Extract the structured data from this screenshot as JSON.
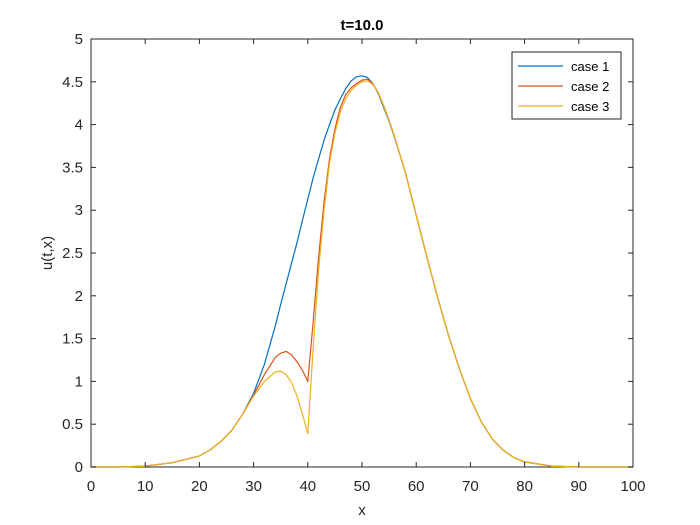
{
  "chart_data": {
    "type": "line",
    "title": "t=10.0",
    "xlabel": "x",
    "ylabel": "u(t,x)",
    "xlim": [
      0,
      100
    ],
    "ylim": [
      0,
      5
    ],
    "xticks": [
      0,
      10,
      20,
      30,
      40,
      50,
      60,
      70,
      80,
      90,
      100
    ],
    "yticks": [
      0,
      0.5,
      1,
      1.5,
      2,
      2.5,
      3,
      3.5,
      4,
      4.5,
      5
    ],
    "grid": false,
    "legend_position": "top-right",
    "x": [
      0,
      5,
      10,
      15,
      20,
      22,
      24,
      26,
      28,
      30,
      32,
      34,
      35,
      36,
      37,
      38,
      39,
      40,
      41,
      42,
      43,
      44,
      45,
      46,
      47,
      48,
      49,
      50,
      51,
      52,
      53,
      54,
      55,
      56,
      58,
      60,
      62,
      64,
      66,
      68,
      70,
      72,
      74,
      76,
      78,
      80,
      85,
      90,
      95,
      100
    ],
    "series": [
      {
        "name": "case 1",
        "color": "#0072BD",
        "values": [
          0,
          0,
          0.01,
          0.05,
          0.13,
          0.2,
          0.3,
          0.43,
          0.62,
          0.86,
          1.2,
          1.65,
          1.9,
          2.14,
          2.38,
          2.62,
          2.88,
          3.13,
          3.38,
          3.6,
          3.82,
          4.0,
          4.17,
          4.3,
          4.42,
          4.51,
          4.56,
          4.57,
          4.55,
          4.48,
          4.36,
          4.2,
          4.04,
          3.85,
          3.44,
          2.94,
          2.45,
          1.97,
          1.53,
          1.14,
          0.8,
          0.53,
          0.33,
          0.2,
          0.11,
          0.06,
          0.01,
          0,
          0,
          0
        ]
      },
      {
        "name": "case 2",
        "color": "#D95319",
        "values": [
          0,
          0,
          0.01,
          0.05,
          0.13,
          0.2,
          0.3,
          0.43,
          0.62,
          0.84,
          1.08,
          1.28,
          1.33,
          1.35,
          1.31,
          1.23,
          1.13,
          1.0,
          1.7,
          2.45,
          3.1,
          3.6,
          3.95,
          4.2,
          4.35,
          4.43,
          4.48,
          4.52,
          4.53,
          4.48,
          4.37,
          4.22,
          4.05,
          3.86,
          3.44,
          2.94,
          2.45,
          1.97,
          1.53,
          1.14,
          0.8,
          0.53,
          0.33,
          0.2,
          0.11,
          0.06,
          0.01,
          0,
          0,
          0
        ]
      },
      {
        "name": "case 3",
        "color": "#EDB120",
        "values": [
          0,
          0,
          0.01,
          0.05,
          0.13,
          0.2,
          0.3,
          0.43,
          0.62,
          0.83,
          1.0,
          1.11,
          1.12,
          1.08,
          0.99,
          0.83,
          0.62,
          0.39,
          1.4,
          2.3,
          3.0,
          3.55,
          3.9,
          4.15,
          4.3,
          4.4,
          4.46,
          4.5,
          4.51,
          4.47,
          4.37,
          4.22,
          4.05,
          3.86,
          3.44,
          2.94,
          2.45,
          1.97,
          1.53,
          1.14,
          0.8,
          0.53,
          0.33,
          0.2,
          0.11,
          0.06,
          0.01,
          0,
          0,
          0
        ]
      }
    ]
  }
}
